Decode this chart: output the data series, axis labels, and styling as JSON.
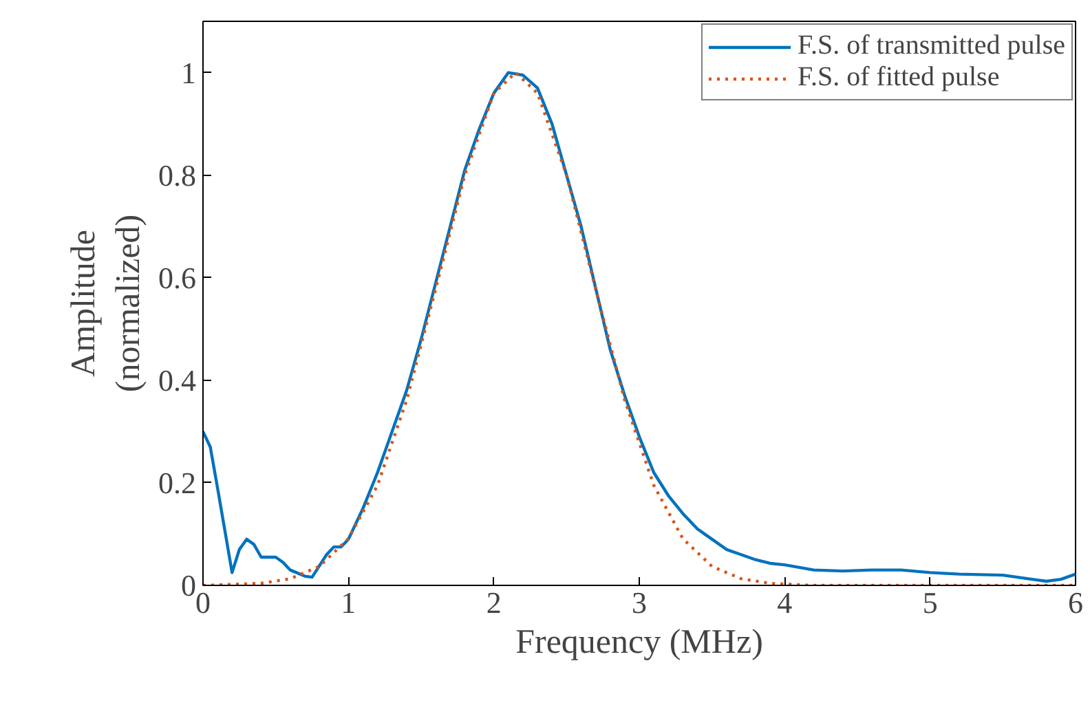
{
  "chart_data": {
    "type": "line",
    "xlabel": "Frequency (MHz)",
    "ylabel": "Amplitude (normalized)",
    "xlim": [
      0,
      6
    ],
    "ylim": [
      0,
      1.1
    ],
    "xticks": [
      0,
      1,
      2,
      3,
      4,
      5,
      6
    ],
    "yticks": [
      0,
      0.2,
      0.4,
      0.6,
      0.8,
      1
    ],
    "grid": false,
    "legend": "top right",
    "series": [
      {
        "name": "F.S. of transmitted pulse",
        "color": "#0072bd",
        "line_style": "solid",
        "x": [
          0,
          0.05,
          0.1,
          0.2,
          0.25,
          0.3,
          0.35,
          0.4,
          0.5,
          0.55,
          0.6,
          0.7,
          0.75,
          0.85,
          0.9,
          0.95,
          1.0,
          1.1,
          1.2,
          1.3,
          1.4,
          1.5,
          1.6,
          1.7,
          1.8,
          1.9,
          2.0,
          2.1,
          2.2,
          2.3,
          2.4,
          2.5,
          2.6,
          2.7,
          2.8,
          2.9,
          3.0,
          3.1,
          3.2,
          3.3,
          3.4,
          3.5,
          3.6,
          3.7,
          3.8,
          3.9,
          4.0,
          4.2,
          4.4,
          4.6,
          4.8,
          5.0,
          5.2,
          5.5,
          5.7,
          5.8,
          5.9,
          6.0
        ],
        "values": [
          0.3,
          0.27,
          0.19,
          0.025,
          0.07,
          0.09,
          0.08,
          0.055,
          0.055,
          0.045,
          0.03,
          0.018,
          0.016,
          0.06,
          0.075,
          0.075,
          0.09,
          0.15,
          0.22,
          0.3,
          0.38,
          0.48,
          0.59,
          0.7,
          0.81,
          0.89,
          0.96,
          1.0,
          0.995,
          0.97,
          0.9,
          0.8,
          0.7,
          0.58,
          0.46,
          0.37,
          0.29,
          0.22,
          0.175,
          0.14,
          0.11,
          0.09,
          0.07,
          0.06,
          0.05,
          0.043,
          0.04,
          0.03,
          0.028,
          0.03,
          0.03,
          0.025,
          0.022,
          0.02,
          0.012,
          0.008,
          0.012,
          0.022
        ]
      },
      {
        "name": "F.S. of fitted pulse",
        "color": "#d95319",
        "line_style": "dotted",
        "x": [
          0,
          0.4,
          0.6,
          0.8,
          1.0,
          1.2,
          1.4,
          1.6,
          1.8,
          2.0,
          2.15,
          2.3,
          2.5,
          2.7,
          2.9,
          3.1,
          3.3,
          3.5,
          3.7,
          3.9,
          4.2,
          5,
          6
        ],
        "values": [
          0,
          0.004,
          0.013,
          0.037,
          0.091,
          0.195,
          0.361,
          0.578,
          0.8,
          0.96,
          1.0,
          0.96,
          0.8,
          0.578,
          0.361,
          0.195,
          0.091,
          0.037,
          0.013,
          0.004,
          0,
          0,
          0
        ]
      }
    ]
  }
}
